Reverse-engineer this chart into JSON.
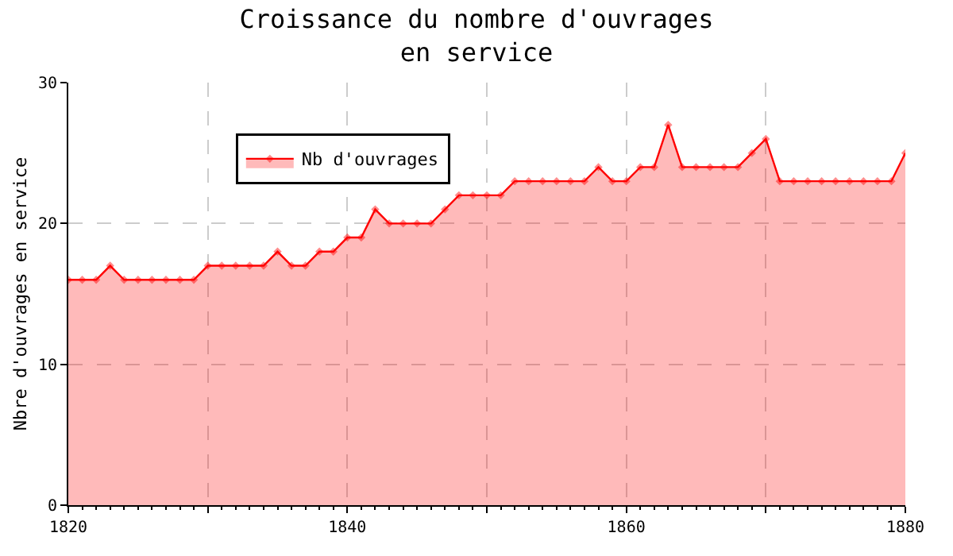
{
  "chart_data": {
    "type": "area",
    "title": "Croissance du nombre d'ouvrages\nen service",
    "ylabel": "Nbre d'ouvrages en service",
    "x": [
      1820,
      1821,
      1822,
      1823,
      1824,
      1825,
      1826,
      1827,
      1828,
      1829,
      1830,
      1831,
      1832,
      1833,
      1834,
      1835,
      1836,
      1837,
      1838,
      1839,
      1840,
      1841,
      1842,
      1843,
      1844,
      1845,
      1846,
      1847,
      1848,
      1849,
      1850,
      1851,
      1852,
      1853,
      1854,
      1855,
      1856,
      1857,
      1858,
      1859,
      1860,
      1861,
      1862,
      1863,
      1864,
      1865,
      1866,
      1867,
      1868,
      1869,
      1870,
      1871,
      1872,
      1873,
      1874,
      1875,
      1876,
      1877,
      1878,
      1879,
      1880
    ],
    "series": [
      {
        "name": "Nb d'ouvrages",
        "color": "#ff0000",
        "values": [
          16,
          16,
          16,
          17,
          16,
          16,
          16,
          16,
          16,
          16,
          17,
          17,
          17,
          17,
          17,
          18,
          17,
          17,
          18,
          18,
          19,
          19,
          21,
          20,
          20,
          20,
          20,
          21,
          22,
          22,
          22,
          22,
          23,
          23,
          23,
          23,
          23,
          23,
          24,
          23,
          23,
          24,
          24,
          27,
          24,
          24,
          24,
          24,
          24,
          25,
          26,
          23,
          23,
          23,
          23,
          23,
          23,
          23,
          23,
          23,
          25
        ]
      }
    ],
    "xlim": [
      1820,
      1880
    ],
    "xticks": [
      1820,
      {
        "value": 1830,
        "label": null
      },
      1840,
      {
        "value": 1850,
        "label": null
      },
      1860,
      {
        "value": 1870,
        "label": null
      },
      1880
    ],
    "ylim": [
      0,
      30
    ],
    "yticks": [
      0,
      10,
      20,
      30
    ],
    "grid": true,
    "legend": "top left",
    "marker": "diamond",
    "line_style": "solid"
  }
}
